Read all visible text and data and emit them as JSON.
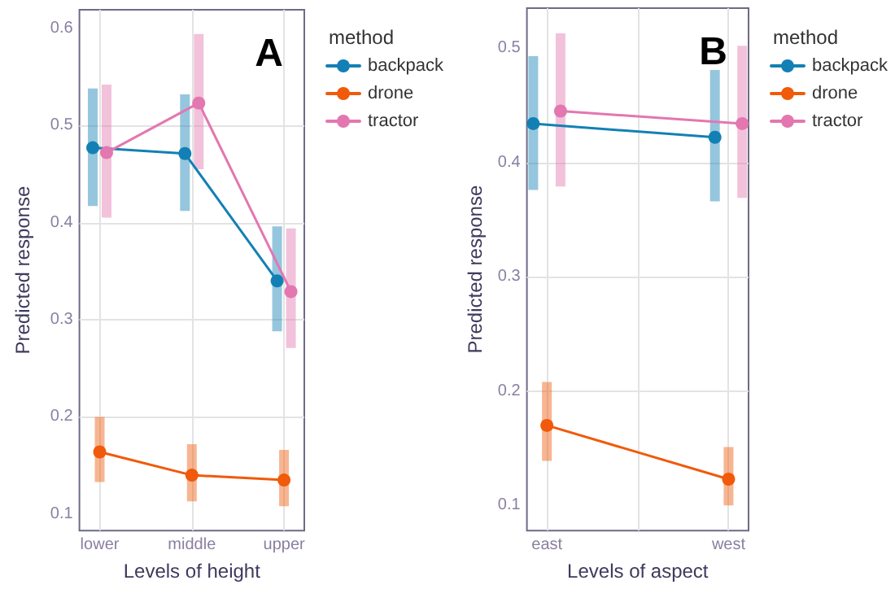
{
  "chart_data": [
    {
      "type": "line",
      "title": "A",
      "xlabel": "Levels of height",
      "ylabel": "Predicted response",
      "legend_title": "method",
      "categories": [
        "lower",
        "middle",
        "upper"
      ],
      "series": [
        {
          "name": "backpack",
          "color": "#1380b5",
          "values": [
            0.477,
            0.471,
            0.34
          ],
          "errors": [
            [
              0.417,
              0.538
            ],
            [
              0.412,
              0.532
            ],
            [
              0.288,
              0.396
            ]
          ]
        },
        {
          "name": "drone",
          "color": "#f05a0a",
          "values": [
            0.164,
            0.14,
            0.135
          ],
          "errors": [
            [
              0.133,
              0.2
            ],
            [
              0.113,
              0.172
            ],
            [
              0.108,
              0.166
            ]
          ]
        },
        {
          "name": "tractor",
          "color": "#e377b0",
          "values": [
            0.472,
            0.523,
            0.329
          ],
          "errors": [
            [
              0.405,
              0.542
            ],
            [
              0.455,
              0.594
            ],
            [
              0.271,
              0.394
            ]
          ]
        }
      ],
      "ylim": [
        0.083,
        0.619
      ],
      "yticks": [
        0.1,
        0.2,
        0.3,
        0.4,
        0.5,
        0.6
      ],
      "grid": true,
      "legend": "right",
      "marker": "circle"
    },
    {
      "type": "line",
      "title": "B",
      "xlabel": "Levels of aspect",
      "ylabel": "Predicted response",
      "legend_title": "method",
      "categories": [
        "east",
        "west"
      ],
      "series": [
        {
          "name": "backpack",
          "color": "#1380b5",
          "values": [
            0.434,
            0.422
          ],
          "errors": [
            [
              0.376,
              0.493
            ],
            [
              0.366,
              0.481
            ]
          ]
        },
        {
          "name": "drone",
          "color": "#f05a0a",
          "values": [
            0.17,
            0.123
          ],
          "errors": [
            [
              0.139,
              0.208
            ],
            [
              0.1,
              0.151
            ]
          ]
        },
        {
          "name": "tractor",
          "color": "#e377b0",
          "values": [
            0.445,
            0.434
          ],
          "errors": [
            [
              0.379,
              0.513
            ],
            [
              0.369,
              0.502
            ]
          ]
        }
      ],
      "ylim": [
        0.078,
        0.535
      ],
      "yticks": [
        0.1,
        0.2,
        0.3,
        0.4,
        0.5
      ],
      "grid": true,
      "legend": "right",
      "marker": "circle"
    }
  ]
}
